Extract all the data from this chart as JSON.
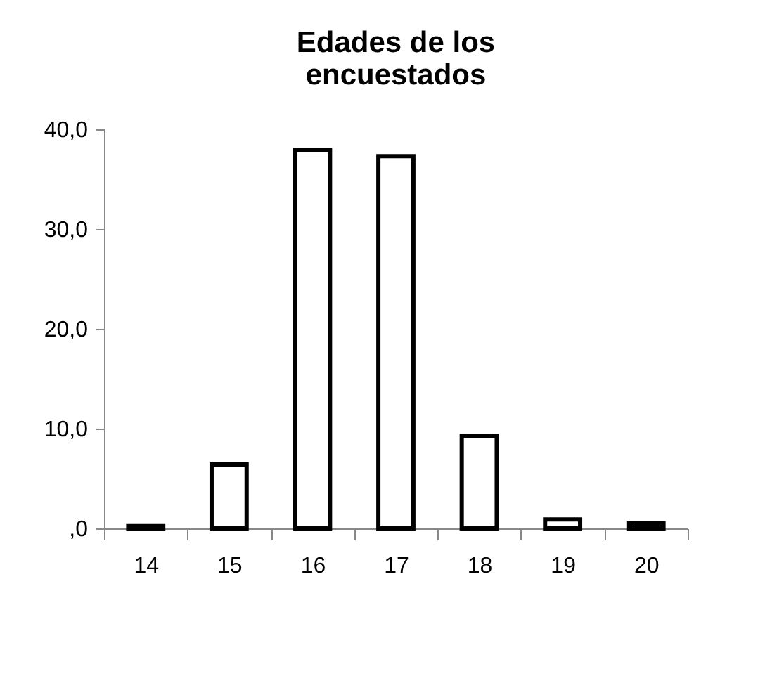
{
  "chart_data": {
    "type": "bar",
    "title": "Edades de los encuestados",
    "categories": [
      "14",
      "15",
      "16",
      "17",
      "18",
      "19",
      "20"
    ],
    "values": [
      0.3,
      6.4,
      37.9,
      37.3,
      9.3,
      0.9,
      0.5
    ],
    "color": "#ffffff",
    "ylim": [
      0,
      40
    ],
    "yticks": [
      {
        "value": 0,
        "label": ",0"
      },
      {
        "value": 10,
        "label": "10,0"
      },
      {
        "value": 20,
        "label": "20,0"
      },
      {
        "value": 30,
        "label": "30,0"
      },
      {
        "value": 40,
        "label": "40,0"
      }
    ],
    "grid": false
  }
}
